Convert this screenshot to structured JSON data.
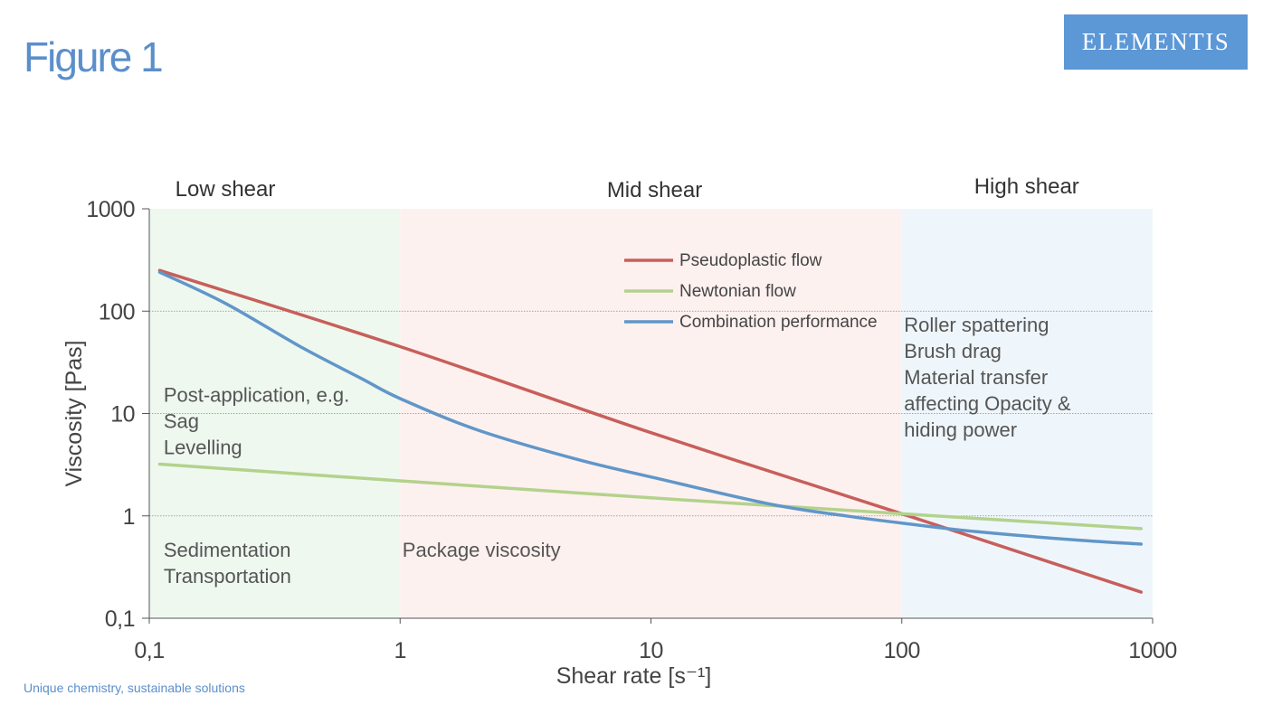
{
  "header": {
    "title": "Figure 1"
  },
  "brand": {
    "logo_text": "ELEMENTIS"
  },
  "footer": {
    "tagline": "Unique chemistry, sustainable solutions"
  },
  "chart_data": {
    "type": "line",
    "x_scale": "log",
    "y_scale": "log",
    "xlabel": "Shear rate [s⁻¹]",
    "ylabel": "Viscosity [Pas]",
    "xlim": [
      0.1,
      1000
    ],
    "ylim": [
      0.1,
      1000
    ],
    "x_ticks": [
      {
        "value": 0.1,
        "label": "0,1"
      },
      {
        "value": 1,
        "label": "1"
      },
      {
        "value": 10,
        "label": "10"
      },
      {
        "value": 100,
        "label": "100"
      },
      {
        "value": 1000,
        "label": "1000"
      }
    ],
    "y_ticks": [
      {
        "value": 0.1,
        "label": "0,1"
      },
      {
        "value": 1,
        "label": "1"
      },
      {
        "value": 10,
        "label": "10"
      },
      {
        "value": 100,
        "label": "100"
      },
      {
        "value": 1000,
        "label": "1000"
      }
    ],
    "gridlines_y": [
      1,
      10,
      100
    ],
    "regions": [
      {
        "name": "Low shear",
        "x_range": [
          0.1,
          1
        ],
        "color": "#eef8ef",
        "annotations": [
          {
            "lines": [
              "Post-application, e.g.",
              "Sag",
              "Levelling"
            ],
            "x": 0.115,
            "y": 13
          },
          {
            "lines": [
              "Sedimentation",
              "Transportation"
            ],
            "x": 0.115,
            "y": 0.4
          }
        ]
      },
      {
        "name": "Mid shear",
        "x_range": [
          1,
          100
        ],
        "color": "#fdf1ef",
        "annotations": [
          {
            "lines": [
              "Package viscosity"
            ],
            "x": 1.03,
            "y": 0.4
          }
        ]
      },
      {
        "name": "High shear",
        "x_range": [
          100,
          1000
        ],
        "color": "#eff6fb",
        "annotations": [
          {
            "lines": [
              "Roller spattering",
              "Brush drag",
              "Material transfer",
              "affecting Opacity &",
              "hiding power"
            ],
            "x": 103,
            "y": 63
          }
        ]
      }
    ],
    "legend_position": "top-center",
    "series": [
      {
        "name": "Pseudoplastic flow",
        "color": "#c75f5b",
        "points": [
          [
            0.11,
            250
          ],
          [
            1,
            45
          ],
          [
            10,
            6.5
          ],
          [
            100,
            1.05
          ],
          [
            900,
            0.18
          ]
        ]
      },
      {
        "name": "Newtonian flow",
        "color": "#b3d28c",
        "points": [
          [
            0.11,
            3.2
          ],
          [
            1,
            2.2
          ],
          [
            10,
            1.5
          ],
          [
            100,
            1.05
          ],
          [
            900,
            0.75
          ]
        ]
      },
      {
        "name": "Combination performance",
        "color": "#6196c9",
        "points": [
          [
            0.11,
            240
          ],
          [
            0.2,
            120
          ],
          [
            0.4,
            45
          ],
          [
            0.7,
            22
          ],
          [
            1,
            14
          ],
          [
            2,
            7
          ],
          [
            5,
            3.6
          ],
          [
            10,
            2.4
          ],
          [
            30,
            1.3
          ],
          [
            60,
            1.0
          ],
          [
            100,
            0.85
          ],
          [
            200,
            0.7
          ],
          [
            500,
            0.58
          ],
          [
            900,
            0.53
          ]
        ]
      }
    ]
  }
}
